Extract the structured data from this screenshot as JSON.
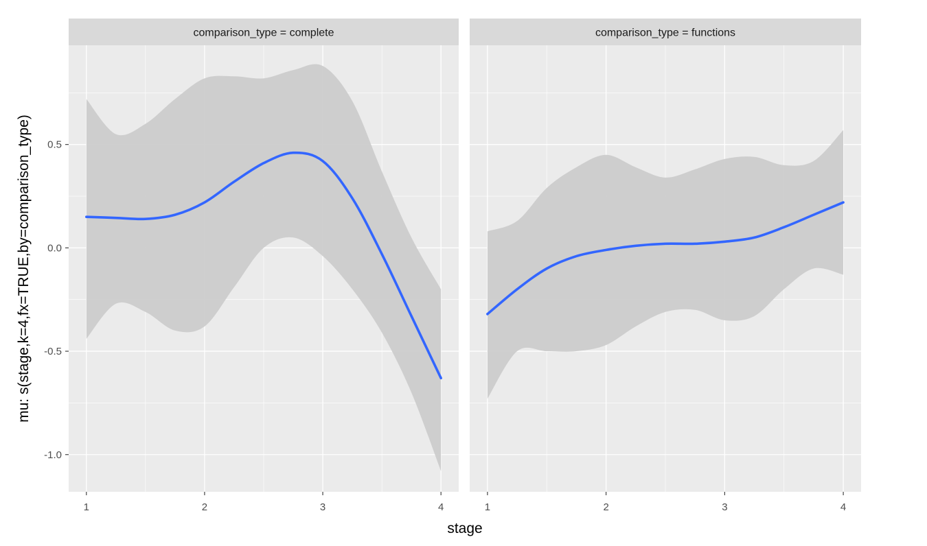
{
  "chart_data": {
    "type": "line",
    "xlabel": "stage",
    "ylabel": "mu: s(stage,k=4,fx=TRUE,by=comparison_type)",
    "xlim": [
      0.85,
      4.15
    ],
    "ylim": [
      -1.18,
      0.98
    ],
    "x_ticks": [
      1,
      2,
      3,
      4
    ],
    "x_tick_labels": [
      "1",
      "2",
      "3",
      "4"
    ],
    "y_ticks": [
      -1.0,
      -0.5,
      0.0,
      0.5
    ],
    "y_tick_labels": [
      "-1.0",
      "-0.5",
      "0.0",
      "0.5"
    ],
    "grid": true,
    "colors": {
      "line": "#3366ff",
      "ribbon": "#cccccc",
      "panel": "#ebebeb",
      "strip": "#d9d9d9",
      "grid": "#ffffff"
    },
    "facets": [
      {
        "strip_label": "comparison_type = complete",
        "x": [
          1.0,
          1.25,
          1.5,
          1.75,
          2.0,
          2.25,
          2.5,
          2.75,
          3.0,
          3.25,
          3.5,
          3.75,
          4.0
        ],
        "fit": [
          0.15,
          0.145,
          0.14,
          0.16,
          0.22,
          0.32,
          0.41,
          0.46,
          0.42,
          0.24,
          -0.03,
          -0.33,
          -0.63
        ],
        "lower": [
          -0.44,
          -0.27,
          -0.31,
          -0.4,
          -0.38,
          -0.19,
          0.0,
          0.05,
          -0.04,
          -0.2,
          -0.41,
          -0.7,
          -1.08
        ],
        "upper": [
          0.72,
          0.55,
          0.6,
          0.72,
          0.82,
          0.83,
          0.82,
          0.86,
          0.88,
          0.71,
          0.37,
          0.05,
          -0.2
        ]
      },
      {
        "strip_label": "comparison_type = functions",
        "x": [
          1.0,
          1.25,
          1.5,
          1.75,
          2.0,
          2.25,
          2.5,
          2.75,
          3.0,
          3.25,
          3.5,
          3.75,
          4.0
        ],
        "fit": [
          -0.32,
          -0.2,
          -0.1,
          -0.04,
          -0.01,
          0.01,
          0.02,
          0.02,
          0.03,
          0.05,
          0.1,
          0.16,
          0.22
        ],
        "lower": [
          -0.73,
          -0.5,
          -0.5,
          -0.5,
          -0.47,
          -0.38,
          -0.31,
          -0.3,
          -0.35,
          -0.33,
          -0.2,
          -0.1,
          -0.13
        ],
        "upper": [
          0.08,
          0.13,
          0.29,
          0.39,
          0.45,
          0.39,
          0.34,
          0.38,
          0.43,
          0.44,
          0.4,
          0.42,
          0.57
        ]
      }
    ]
  }
}
